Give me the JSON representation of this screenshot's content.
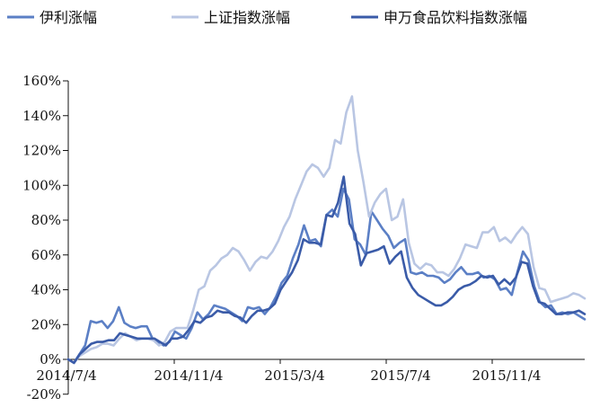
{
  "chart_data": {
    "type": "line",
    "title": "",
    "xlabel": "",
    "ylabel": "",
    "ylim": [
      -20,
      160
    ],
    "y_ticks": [
      -20,
      0,
      20,
      40,
      60,
      80,
      100,
      120,
      140,
      160
    ],
    "y_tick_suffix": "%",
    "x_tick_labels": [
      "2014/7/4",
      "2014/11/4",
      "2015/3/4",
      "2015/7/4",
      "2015/11/4"
    ],
    "legend_position": "top",
    "grid": false,
    "series": [
      {
        "name": "伊利涨幅",
        "color": "#5b7fc5",
        "values": [
          0,
          -2,
          3,
          8,
          22,
          21,
          22,
          18,
          22,
          30,
          21,
          19,
          18,
          19,
          19,
          12,
          10,
          8,
          10,
          16,
          14,
          12,
          18,
          27,
          23,
          26,
          31,
          30,
          29,
          27,
          25,
          22,
          30,
          29,
          30,
          26,
          30,
          36,
          44,
          48,
          58,
          66,
          77,
          68,
          69,
          65,
          83,
          86,
          82,
          98,
          92,
          69,
          66,
          60,
          85,
          80,
          75,
          71,
          64,
          67,
          69,
          50,
          49,
          50,
          48,
          48,
          47,
          44,
          46,
          50,
          53,
          49,
          49,
          50,
          47,
          48,
          46,
          40,
          41,
          37,
          50,
          62,
          57,
          42,
          33,
          30,
          31,
          26,
          27,
          26,
          27,
          25,
          23
        ],
        "width": 2.6
      },
      {
        "name": "上证指数涨幅",
        "color": "#b9c6e3",
        "values": [
          0,
          -2,
          2,
          4,
          6,
          7,
          9,
          9,
          8,
          12,
          15,
          13,
          11,
          12,
          12,
          11,
          8,
          10,
          16,
          18,
          18,
          18,
          28,
          40,
          42,
          51,
          54,
          58,
          60,
          64,
          62,
          57,
          51,
          56,
          59,
          58,
          62,
          68,
          76,
          82,
          92,
          100,
          108,
          112,
          110,
          105,
          110,
          126,
          124,
          142,
          151,
          120,
          102,
          82,
          90,
          95,
          98,
          80,
          82,
          92,
          67,
          55,
          52,
          55,
          54,
          50,
          50,
          48,
          52,
          58,
          66,
          65,
          64,
          73,
          73,
          76,
          68,
          70,
          67,
          72,
          76,
          72,
          53,
          41,
          40,
          33,
          34,
          35,
          36,
          38,
          37,
          35
        ],
        "width": 2.6
      },
      {
        "name": "申万食品饮料指数涨幅",
        "color": "#3a5ba8",
        "values": [
          0,
          -2,
          3,
          6,
          9,
          10,
          10,
          11,
          11,
          15,
          14,
          13,
          12,
          12,
          12,
          12,
          10,
          8,
          12,
          12,
          13,
          17,
          22,
          21,
          24,
          25,
          28,
          27,
          27,
          25,
          24,
          21,
          25,
          28,
          28,
          29,
          32,
          40,
          45,
          50,
          57,
          69,
          67,
          67,
          66,
          83,
          82,
          90,
          105,
          78,
          72,
          54,
          61,
          62,
          63,
          65,
          55,
          59,
          62,
          47,
          41,
          37,
          35,
          33,
          31,
          31,
          33,
          36,
          40,
          42,
          43,
          45,
          48,
          47,
          48,
          43,
          46,
          43,
          47,
          56,
          55,
          42,
          33,
          32,
          29,
          26,
          26,
          27,
          27,
          28,
          26
        ]
      }
    ]
  },
  "legend": {
    "yili": "伊利涨幅",
    "sse": "上证指数涨幅",
    "sw_food": "申万食品饮料指数涨幅"
  },
  "colors": {
    "axis": "#111111"
  }
}
